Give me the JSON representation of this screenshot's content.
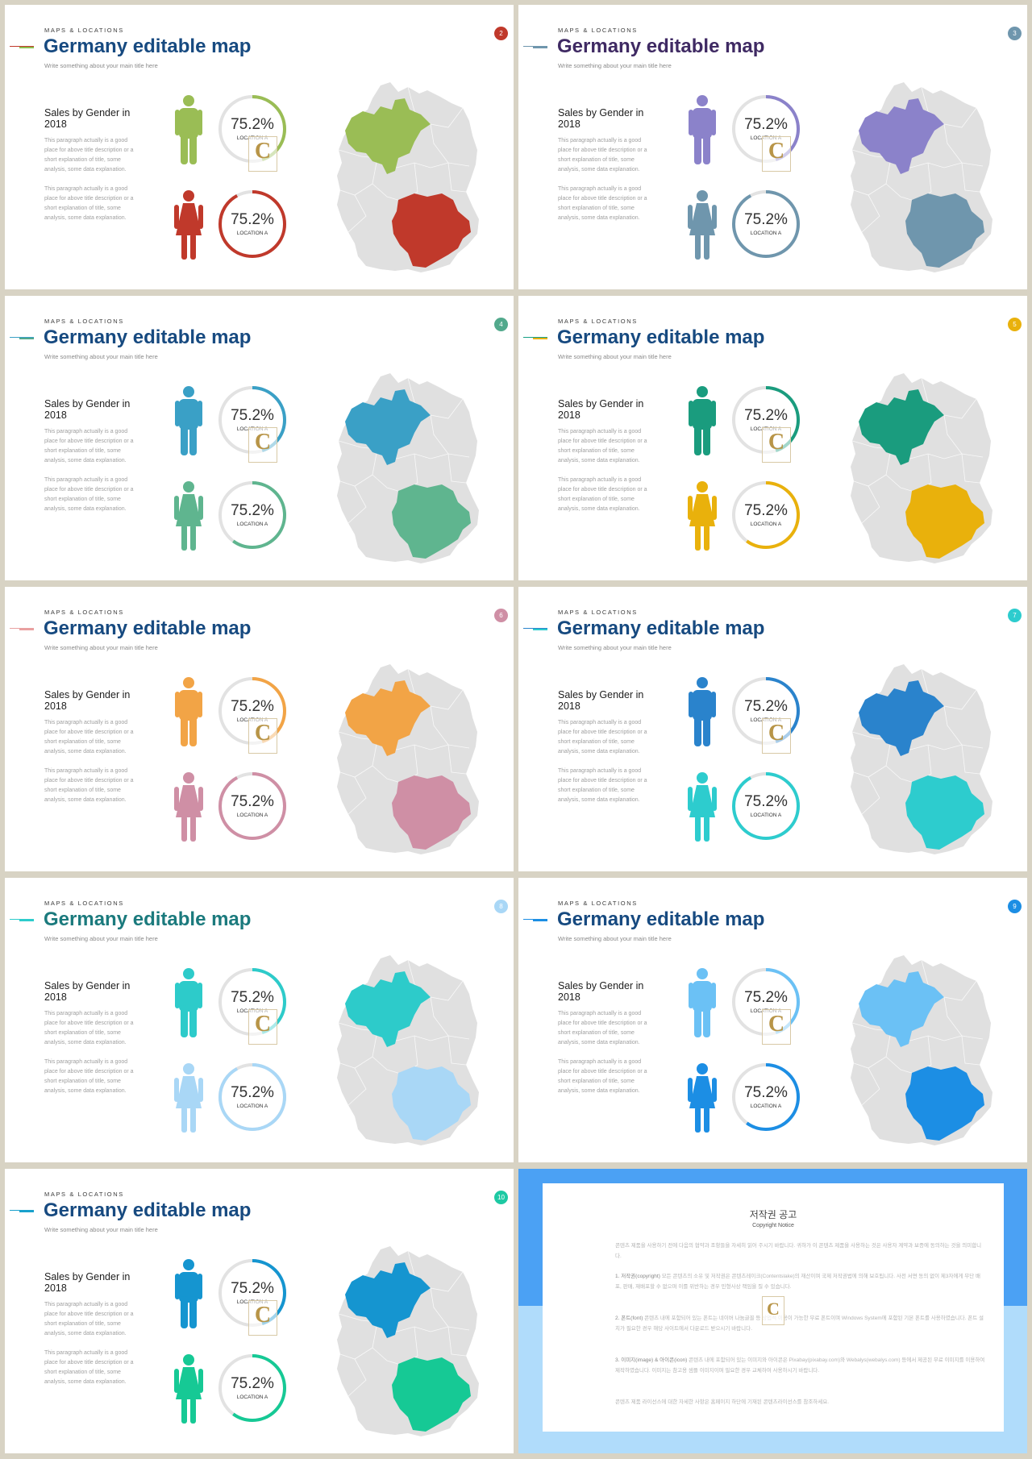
{
  "common": {
    "kicker": "MAPS & LOCATIONS",
    "title": "Germany editable map",
    "subtitle": "Write something about your main title here",
    "heading": "Sales by Gender in 2018",
    "paragraph1": "This paragraph actually is a good place for above title description or a short explanation of title, some analysis, some data explanation.",
    "paragraph2": "This paragraph actually is a good place for above title description or a short explanation of title, some analysis, some data explanation.",
    "stat_male_value": "75.2%",
    "stat_male_label": "LOCATION A",
    "stat_female_value": "75.2%",
    "stat_female_label": "LOCATION A",
    "watermark": "C"
  },
  "map_base_color": "#e0e0e0",
  "slides": [
    {
      "number": "2",
      "number_color": "#c0392b",
      "title_color": "#174a80",
      "accent1": "#c0392b",
      "accent2": "#8dbf4e",
      "male_color": "#9abd55",
      "female_color": "#c0392b",
      "male_fraction": 0.45,
      "female_fraction": 0.92
    },
    {
      "number": "3",
      "number_color": "#6f96ad",
      "title_color": "#3f2a63",
      "accent1": "#6f96ad",
      "accent2": "#6f96ad",
      "male_color": "#8b82ca",
      "female_color": "#6f96ad",
      "male_fraction": 0.45,
      "female_fraction": 0.92
    },
    {
      "number": "4",
      "number_color": "#52a98c",
      "title_color": "#174a80",
      "accent1": "#3aa0c6",
      "accent2": "#52a98c",
      "male_color": "#3aa0c6",
      "female_color": "#5fb58f",
      "male_fraction": 0.45,
      "female_fraction": 0.6
    },
    {
      "number": "5",
      "number_color": "#e9b10c",
      "title_color": "#174a80",
      "accent1": "#17a086",
      "accent2": "#e9b10c",
      "male_color": "#1a9c7e",
      "female_color": "#e9b10c",
      "male_fraction": 0.45,
      "female_fraction": 0.6
    },
    {
      "number": "6",
      "number_color": "#cf8fa5",
      "title_color": "#174a80",
      "accent1": "#e9a0a0",
      "accent2": "#e9a0a0",
      "male_color": "#f2a446",
      "female_color": "#cf8fa5",
      "male_fraction": 0.45,
      "female_fraction": 0.92
    },
    {
      "number": "7",
      "number_color": "#2dccce",
      "title_color": "#174a80",
      "accent1": "#2a83cc",
      "accent2": "#2dccce",
      "male_color": "#2a83cc",
      "female_color": "#2dccce",
      "male_fraction": 0.45,
      "female_fraction": 0.92
    },
    {
      "number": "8",
      "number_color": "#a9d7f6",
      "title_color": "#1b7a7d",
      "accent1": "#2dcccc",
      "accent2": "#2dcccc",
      "male_color": "#2dcbca",
      "female_color": "#a9d7f6",
      "male_fraction": 0.45,
      "female_fraction": 0.92
    },
    {
      "number": "9",
      "number_color": "#1c8ee4",
      "title_color": "#174a80",
      "accent1": "#1c8ee4",
      "accent2": "#1c8ee4",
      "male_color": "#6bc1f5",
      "female_color": "#1c8ee4",
      "male_fraction": 0.45,
      "female_fraction": 0.6
    },
    {
      "number": "10",
      "number_color": "#1dc9a3",
      "title_color": "#174a80",
      "accent1": "#19a1cc",
      "accent2": "#19a1cc",
      "male_color": "#1595d0",
      "female_color": "#16c995",
      "male_fraction": 0.45,
      "female_fraction": 0.6
    }
  ],
  "notice": {
    "title": "저작권 공고",
    "subtitle": "Copyright Notice",
    "intro": "콘텐츠 제품을 사용하기 전에 다음의 협약과 조항들을 자세히 읽어 주시기 바랍니다. 귀하가 이 콘텐츠 제품을 사용하는 것은 사용자 계약과 보증에 동의하는 것을 의미합니다.",
    "item1_label": "1. 저작권(copyright)",
    "item1_text": "모든 콘텐츠의 소유 및 저작권은 콘텐츠레이크(Contentslake)의 재산이며 국제 저작권법에 의해 보호됩니다. 사전 서면 동의 없이 제3자에게 무단 배포, 판매, 재배포할 수 없으며 이를 위반하는 경우 민형사상 책임을 질 수 있습니다.",
    "item2_label": "2. 폰트(font)",
    "item2_text": "콘텐츠 내에 포함되어 있는 폰트는 네이버 나눔글꼴 등 상업적 이용이 가능한 무료 폰트이며 Windows System에 포함된 기본 폰트를 사용하였습니다. 폰트 설치가 필요한 경우 해당 사이트에서 다운로드 받으시기 바랍니다.",
    "item3_label": "3. 이미지(image) & 아이콘(icon)",
    "item3_text": "콘텐츠 내에 포함되어 있는 이미지와 아이콘은 Pixabay(pixabay.com)와 Webalys(webalys.com) 등에서 제공된 무료 이미지를 이용하여 제작하였습니다. 이미지는 참고용 샘플 이미지이며 필요한 경우 교체하여 사용하시기 바랍니다.",
    "footer": "콘텐츠 제품 라이선스에 대한 자세한 사항은 홈페이지 하단에 기재된 콘텐츠라이선스를 참조하세요."
  }
}
